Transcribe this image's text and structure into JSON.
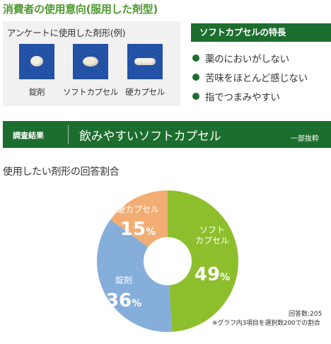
{
  "page_title": "消費者の使用意向(服用した剤型)",
  "samples": {
    "heading": "アンケートに使用した剤形(例)",
    "items": [
      {
        "label": "錠剤",
        "icon": "tablet-icon"
      },
      {
        "label": "ソフトカプセル",
        "icon": "soft-capsule-icon"
      },
      {
        "label": "硬カプセル",
        "icon": "hard-capsule-icon"
      }
    ]
  },
  "features": {
    "header": "ソフトカプセルの特長",
    "items": [
      "薬のにおいがしない",
      "苦味をほとんど感じない",
      "指でつまみやすい"
    ]
  },
  "results": {
    "label": "調査結果",
    "headline": "飲みやすいソフトカプセル",
    "note": "一部抜粋"
  },
  "chart_title": "使用したい剤形の回答割合",
  "respondents": "回答数:205",
  "footnote": "※グラフ内3項目を選択数200での割合",
  "chart_data": {
    "type": "pie",
    "title": "使用したい剤形の回答割合",
    "slices": [
      {
        "label": "ソフトカプセル",
        "label_lines": [
          "ソフト",
          "カプセル"
        ],
        "value": 49,
        "color": "#8dbf2c"
      },
      {
        "label": "錠剤",
        "label_lines": [
          "錠剤"
        ],
        "value": 36,
        "color": "#86aedb"
      },
      {
        "label": "硬カプセル",
        "label_lines": [
          "硬カプセル"
        ],
        "value": 15,
        "color": "#f2ad74"
      }
    ],
    "unit": "%",
    "donut": true
  }
}
